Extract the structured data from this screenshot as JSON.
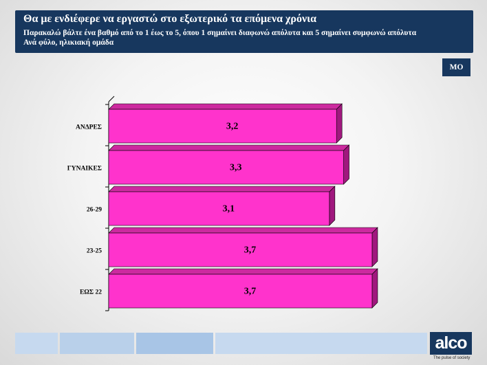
{
  "header": {
    "title": "Θα με ενδιέφερε να εργαστώ στο εξωτερικό τα επόμενα χρόνια",
    "subtitle1": "Παρακαλώ βάλτε ένα βαθμό από το 1 έως το 5, όπου 1 σημαίνει διαφωνώ απόλυτα και 5 σημαίνει συμφωνώ απόλυτα",
    "subtitle2": "Ανά φύλο, ηλικιακή ομάδα"
  },
  "badge": {
    "label": "ΜΟ"
  },
  "chart_data": {
    "type": "bar",
    "orientation": "horizontal",
    "categories": [
      "ΑΝΔΡΕΣ",
      "ΓΥΝΑΙΚΕΣ",
      "26-29",
      "23-25",
      "ΕΩΣ  22"
    ],
    "values": [
      3.2,
      3.3,
      3.1,
      3.7,
      3.7
    ],
    "value_labels": [
      "3,2",
      "3,3",
      "3,1",
      "3,7",
      "3,7"
    ],
    "style": "3d",
    "colors": {
      "bar": "#ff33cc",
      "bar_top": "#cc2a9f",
      "bar_side": "#a0187e"
    }
  },
  "footer": {
    "logo": "alco",
    "tagline": "The pulse of society",
    "strip_colors": [
      "#c6d9ef",
      "#b9d0ea",
      "#a8c5e6",
      "#c6d9ef"
    ]
  }
}
